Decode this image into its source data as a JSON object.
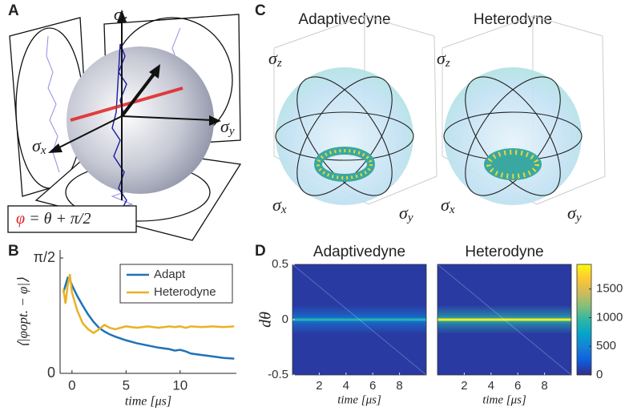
{
  "panel_labels": [
    "A",
    "B",
    "C",
    "D"
  ],
  "panel_a": {
    "axes": {
      "z": {
        "symbol": "σ",
        "sub": "z"
      },
      "y": {
        "symbol": "σ",
        "sub": "y"
      },
      "x": {
        "symbol": "σ",
        "sub": "x"
      }
    },
    "formula_phi": "φ",
    "formula_rest": " = θ + π/2"
  },
  "panel_c": {
    "titles": [
      "Adaptivedyne",
      "Heterodyne"
    ],
    "axes": {
      "z": {
        "symbol": "σ",
        "sub": "z"
      },
      "x": {
        "symbol": "σ",
        "sub": "x"
      },
      "y": {
        "symbol": "σ",
        "sub": "y"
      }
    }
  },
  "chart_data": [
    {
      "type": "line",
      "ylabel": "⟨|φopt. − φ|⟩",
      "xlabel": "time [μs]",
      "x": [
        -0.8,
        -0.6,
        -0.4,
        -0.2,
        0,
        0.5,
        1,
        1.5,
        2,
        2.5,
        3,
        3.5,
        4,
        5,
        6,
        7,
        8,
        9,
        9.5,
        10,
        10.5,
        11,
        12,
        13,
        14,
        15
      ],
      "series": [
        {
          "name": "Adapt",
          "color": "#1f72b8",
          "values": [
            1.1,
            1.2,
            1.3,
            1.28,
            1.2,
            1.05,
            0.92,
            0.8,
            0.7,
            0.62,
            0.57,
            0.53,
            0.5,
            0.45,
            0.41,
            0.38,
            0.35,
            0.33,
            0.31,
            0.32,
            0.3,
            0.27,
            0.25,
            0.23,
            0.21,
            0.2
          ]
        },
        {
          "name": "Heterodyne",
          "color": "#e8b224",
          "values": [
            1.15,
            0.95,
            1.2,
            1.35,
            1.1,
            0.85,
            0.68,
            0.6,
            0.55,
            0.6,
            0.66,
            0.62,
            0.6,
            0.64,
            0.62,
            0.64,
            0.62,
            0.64,
            0.63,
            0.64,
            0.62,
            0.64,
            0.63,
            0.64,
            0.63,
            0.64
          ]
        }
      ],
      "xlim": [
        -1.1,
        15.2
      ],
      "xticks": [
        0,
        5,
        10
      ],
      "ylim": [
        0,
        1.68
      ],
      "yticks": [
        0,
        {
          "value": 1.5708,
          "label": "π/2"
        }
      ],
      "legend": "upper right"
    },
    {
      "type": "heatmap",
      "xlabel": "time [μs]",
      "ylabel": "dθ",
      "colormap": "parula",
      "heatmaps": [
        {
          "title": "Adaptivedyne",
          "peak": 900
        },
        {
          "title": "Heterodyne",
          "peak": 1850
        }
      ],
      "xlim": [
        0,
        10
      ],
      "xticks": [
        2,
        4,
        6,
        8
      ],
      "ylim": [
        -0.5,
        0.5
      ],
      "yticks": [
        -0.5,
        0,
        0.5
      ],
      "clim": [
        0,
        1930
      ],
      "cticks": [
        0,
        500,
        1000,
        1500
      ]
    }
  ]
}
